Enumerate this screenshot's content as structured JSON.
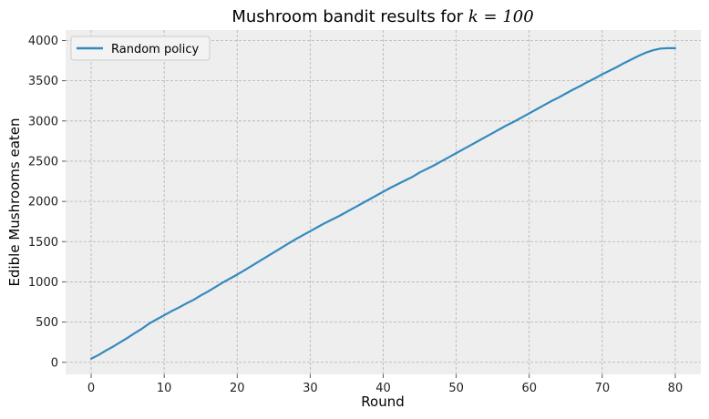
{
  "chart_data": {
    "type": "line",
    "title": "Mushroom bandit results for ",
    "title_math": "k = 100",
    "xlabel": "Round",
    "ylabel": "Edible Mushrooms eaten",
    "xlim": [
      -3.5,
      83.5
    ],
    "ylim": [
      -150,
      4130
    ],
    "xticks": [
      0,
      10,
      20,
      30,
      40,
      50,
      60,
      70,
      80
    ],
    "yticks": [
      0,
      500,
      1000,
      1500,
      2000,
      2500,
      3000,
      3500,
      4000
    ],
    "grid": true,
    "legend_position": "top-left",
    "series": [
      {
        "name": "Random policy",
        "color": "#348abd",
        "x": [
          0,
          1,
          2,
          3,
          4,
          5,
          6,
          7,
          8,
          9,
          10,
          11,
          12,
          13,
          14,
          15,
          16,
          17,
          18,
          19,
          20,
          21,
          22,
          23,
          24,
          25,
          26,
          27,
          28,
          29,
          30,
          31,
          32,
          33,
          34,
          35,
          36,
          37,
          38,
          39,
          40,
          41,
          42,
          43,
          44,
          45,
          46,
          47,
          48,
          49,
          50,
          51,
          52,
          53,
          54,
          55,
          56,
          57,
          58,
          59,
          60,
          61,
          62,
          63,
          64,
          65,
          66,
          67,
          68,
          69,
          70,
          71,
          72,
          73,
          74,
          75,
          76,
          77,
          78,
          79,
          80
        ],
        "values": [
          45,
          90,
          145,
          195,
          250,
          305,
          365,
          420,
          485,
          535,
          585,
          635,
          680,
          730,
          775,
          830,
          880,
          935,
          990,
          1040,
          1090,
          1145,
          1200,
          1255,
          1310,
          1365,
          1420,
          1475,
          1530,
          1580,
          1630,
          1680,
          1730,
          1775,
          1820,
          1870,
          1920,
          1970,
          2020,
          2070,
          2120,
          2170,
          2215,
          2260,
          2305,
          2360,
          2405,
          2450,
          2500,
          2550,
          2600,
          2650,
          2700,
          2750,
          2800,
          2850,
          2900,
          2950,
          2995,
          3045,
          3095,
          3145,
          3195,
          3245,
          3290,
          3340,
          3390,
          3435,
          3485,
          3530,
          3580,
          3625,
          3670,
          3720,
          3765,
          3810,
          3850,
          3880,
          3900,
          3905,
          3905
        ]
      }
    ]
  }
}
